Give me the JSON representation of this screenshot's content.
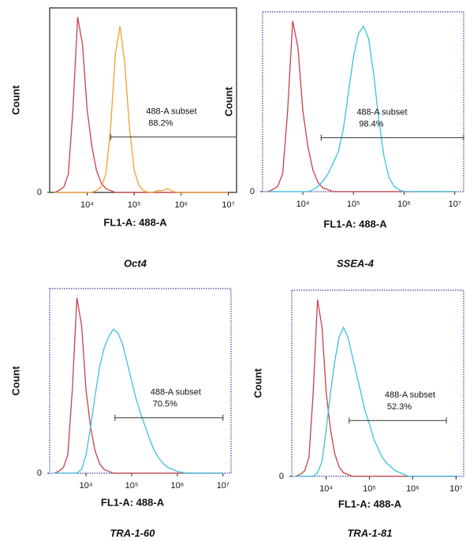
{
  "chart_data": [
    {
      "type": "line",
      "title": "Oct4",
      "xlabel": "FL1-A: 488-A",
      "ylabel": "Count",
      "log_x": true,
      "xlim": [
        1600,
        15000000
      ],
      "xticks": [
        {
          "value": 10000,
          "label": "10⁴"
        },
        {
          "value": 100000,
          "label": "10⁵"
        },
        {
          "value": 1000000,
          "label": "10⁶"
        },
        {
          "value": 10000000,
          "label": "10⁷"
        }
      ],
      "ylim": [
        0,
        100
      ],
      "yticks": [
        0
      ],
      "frame_color": "#222",
      "frame_style": "solid",
      "x": [
        2000,
        2500,
        3200,
        4000,
        5000,
        6300,
        8000,
        10000,
        12600,
        15800,
        20000,
        25100,
        31600,
        39800,
        50100,
        63100,
        79400,
        100000,
        126000,
        158000,
        200000,
        251000,
        316000,
        398000,
        501000,
        631000,
        794000,
        1000000,
        1580000,
        2510000,
        3980000,
        6310000,
        10000000
      ],
      "series": [
        {
          "color": "#c8404a",
          "values": [
            0,
            1,
            3,
            10,
            45,
            95,
            80,
            45,
            25,
            12,
            5,
            2,
            1,
            0,
            0,
            0,
            0,
            0,
            0,
            0,
            0,
            0,
            0,
            0,
            0,
            0,
            0,
            0,
            0,
            0,
            0,
            0,
            0
          ]
        },
        {
          "color": "#f0a030",
          "values": [
            0,
            0,
            0,
            0,
            0,
            0,
            0,
            0,
            0,
            1,
            3,
            10,
            35,
            75,
            90,
            70,
            35,
            12,
            4,
            1,
            0,
            0,
            1,
            1,
            2,
            1,
            0,
            0,
            0,
            0,
            0,
            0,
            0
          ]
        }
      ],
      "annotation": {
        "text": "488-A subset",
        "percent": "88.2%",
        "x_range": [
          31600,
          15000000
        ]
      }
    },
    {
      "type": "line",
      "title": "SSEA-4",
      "xlabel": "FL1-A: 488-A",
      "ylabel": "Count",
      "log_x": true,
      "xlim": [
        1600,
        15000000
      ],
      "xticks": [
        {
          "value": 10000,
          "label": "10⁴"
        },
        {
          "value": 100000,
          "label": "10⁵"
        },
        {
          "value": 1000000,
          "label": "10⁶"
        },
        {
          "value": 10000000,
          "label": "10⁷"
        }
      ],
      "ylim": [
        0,
        100
      ],
      "yticks": [
        0
      ],
      "frame_color": "#3a3aa0",
      "frame_style": "dotted",
      "x": [
        2000,
        2500,
        3200,
        4000,
        5000,
        6300,
        8000,
        10000,
        12600,
        15800,
        20000,
        25100,
        31600,
        39800,
        50100,
        63100,
        79400,
        100000,
        126000,
        158000,
        200000,
        251000,
        316000,
        398000,
        501000,
        631000,
        794000,
        1000000,
        1580000,
        2510000,
        3980000,
        6310000,
        10000000
      ],
      "series": [
        {
          "color": "#c8404a",
          "values": [
            0,
            1,
            3,
            10,
            45,
            95,
            80,
            45,
            25,
            12,
            5,
            2,
            1,
            0,
            0,
            0,
            0,
            0,
            0,
            0,
            0,
            0,
            0,
            0,
            0,
            0,
            0,
            0,
            0,
            0,
            0,
            0,
            0
          ]
        },
        {
          "color": "#3cc0e0",
          "values": [
            0,
            0,
            0,
            0,
            0,
            0,
            0,
            0,
            0,
            1,
            3,
            6,
            10,
            16,
            22,
            35,
            55,
            75,
            88,
            92,
            85,
            65,
            40,
            20,
            8,
            3,
            1,
            0,
            0,
            0,
            0,
            0,
            0
          ]
        }
      ],
      "annotation": {
        "text": "488-A subset",
        "percent": "98.4%",
        "x_range": [
          23000,
          15000000
        ]
      }
    },
    {
      "type": "line",
      "title": "TRA-1-60",
      "xlabel": "FL1-A: 488-A",
      "ylabel": "Count",
      "log_x": true,
      "xlim": [
        1600,
        15000000
      ],
      "xticks": [
        {
          "value": 10000,
          "label": "10⁴"
        },
        {
          "value": 100000,
          "label": "10⁵"
        },
        {
          "value": 1000000,
          "label": "10⁶"
        },
        {
          "value": 10000000,
          "label": "10⁷"
        }
      ],
      "ylim": [
        0,
        100
      ],
      "yticks": [
        0
      ],
      "frame_color": "#3a3aa0",
      "frame_style": "dotted",
      "x": [
        2000,
        2500,
        3200,
        4000,
        5000,
        6300,
        8000,
        10000,
        12600,
        15800,
        20000,
        25100,
        31600,
        39800,
        50100,
        63100,
        79400,
        100000,
        126000,
        158000,
        200000,
        251000,
        316000,
        398000,
        501000,
        631000,
        794000,
        1000000,
        1580000,
        2510000,
        3980000,
        6310000,
        10000000
      ],
      "series": [
        {
          "color": "#c8404a",
          "values": [
            0,
            1,
            3,
            10,
            45,
            95,
            80,
            45,
            25,
            12,
            5,
            2,
            1,
            0,
            0,
            0,
            0,
            0,
            0,
            0,
            0,
            0,
            0,
            0,
            0,
            0,
            0,
            0,
            0,
            0,
            0,
            0,
            0
          ]
        },
        {
          "color": "#3cc0e0",
          "values": [
            0,
            0,
            0,
            0,
            0,
            0,
            2,
            10,
            25,
            42,
            58,
            68,
            74,
            78,
            76,
            70,
            60,
            50,
            40,
            32,
            25,
            18,
            12,
            8,
            5,
            3,
            2,
            1,
            0,
            0,
            0,
            0,
            0
          ]
        }
      ],
      "annotation": {
        "text": "488-A subset",
        "percent": "70.5%",
        "x_range": [
          43000,
          10000000
        ]
      }
    },
    {
      "type": "line",
      "title": "TRA-1-81",
      "xlabel": "FL1-A: 488-A",
      "ylabel": "Count",
      "log_x": true,
      "xlim": [
        1600,
        15000000
      ],
      "xticks": [
        {
          "value": 10000,
          "label": "10⁴"
        },
        {
          "value": 100000,
          "label": "10⁵"
        },
        {
          "value": 1000000,
          "label": "10⁶"
        },
        {
          "value": 10000000,
          "label": "10⁷"
        }
      ],
      "ylim": [
        0,
        100
      ],
      "yticks": [
        0
      ],
      "frame_color": "#3a3aa0",
      "frame_style": "dotted",
      "x": [
        2000,
        2500,
        3200,
        4000,
        5000,
        6300,
        8000,
        10000,
        12600,
        15800,
        20000,
        25100,
        31600,
        39800,
        50100,
        63100,
        79400,
        100000,
        126000,
        158000,
        200000,
        251000,
        316000,
        398000,
        501000,
        631000,
        794000,
        1000000,
        1580000,
        2510000,
        3980000,
        6310000,
        10000000
      ],
      "series": [
        {
          "color": "#c8404a",
          "values": [
            0,
            1,
            3,
            10,
            45,
            95,
            80,
            45,
            25,
            12,
            5,
            2,
            1,
            0,
            0,
            0,
            0,
            0,
            0,
            0,
            0,
            0,
            0,
            0,
            0,
            0,
            0,
            0,
            0,
            0,
            0,
            0,
            0
          ]
        },
        {
          "color": "#3cc0e0",
          "values": [
            0,
            0,
            0,
            0,
            0,
            2,
            8,
            25,
            45,
            62,
            75,
            80,
            75,
            65,
            55,
            45,
            35,
            28,
            20,
            15,
            10,
            7,
            5,
            3,
            2,
            1,
            0,
            0,
            0,
            0,
            0,
            0,
            0
          ]
        }
      ],
      "annotation": {
        "text": "488-A subset",
        "percent": "52.3%",
        "x_range": [
          34000,
          6000000
        ]
      }
    }
  ]
}
